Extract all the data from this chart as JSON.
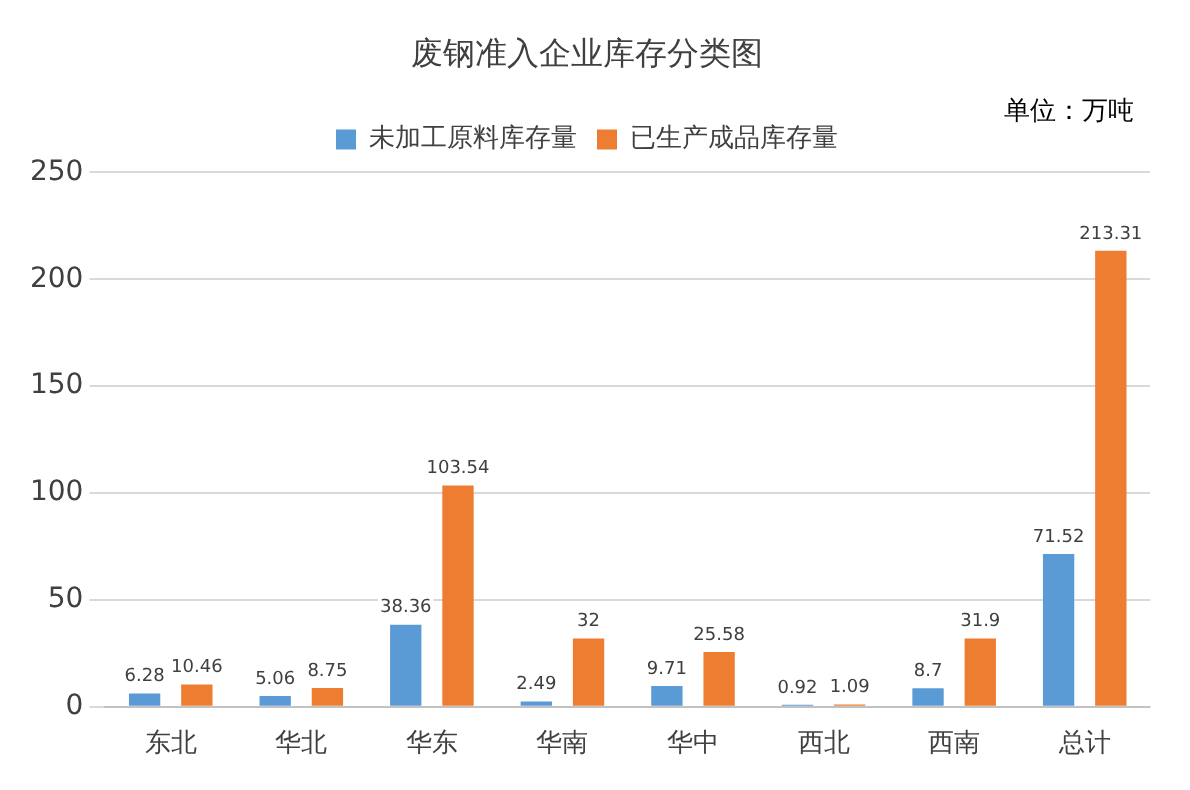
{
  "chart_data": {
    "type": "bar",
    "title": "废钢准入企业库存分类图",
    "annotations": [
      "单位：万吨"
    ],
    "categories": [
      "东北",
      "华北",
      "华东",
      "华南",
      "华中",
      "西北",
      "西南",
      "总计"
    ],
    "series": [
      {
        "name": "未加工原料库存量",
        "color": "#5b9bd5",
        "values": [
          6.28,
          5.06,
          38.36,
          2.49,
          9.71,
          0.92,
          8.7,
          71.52
        ]
      },
      {
        "name": "已生产成品库存量",
        "color": "#ed7d31",
        "values": [
          10.46,
          8.75,
          103.54,
          32,
          25.58,
          1.09,
          31.9,
          213.31
        ]
      }
    ],
    "ylim": [
      0,
      250
    ],
    "yticks": [
      0,
      50,
      100,
      150,
      200,
      250
    ],
    "grid": "y",
    "legend": "top",
    "data_labels": true
  }
}
